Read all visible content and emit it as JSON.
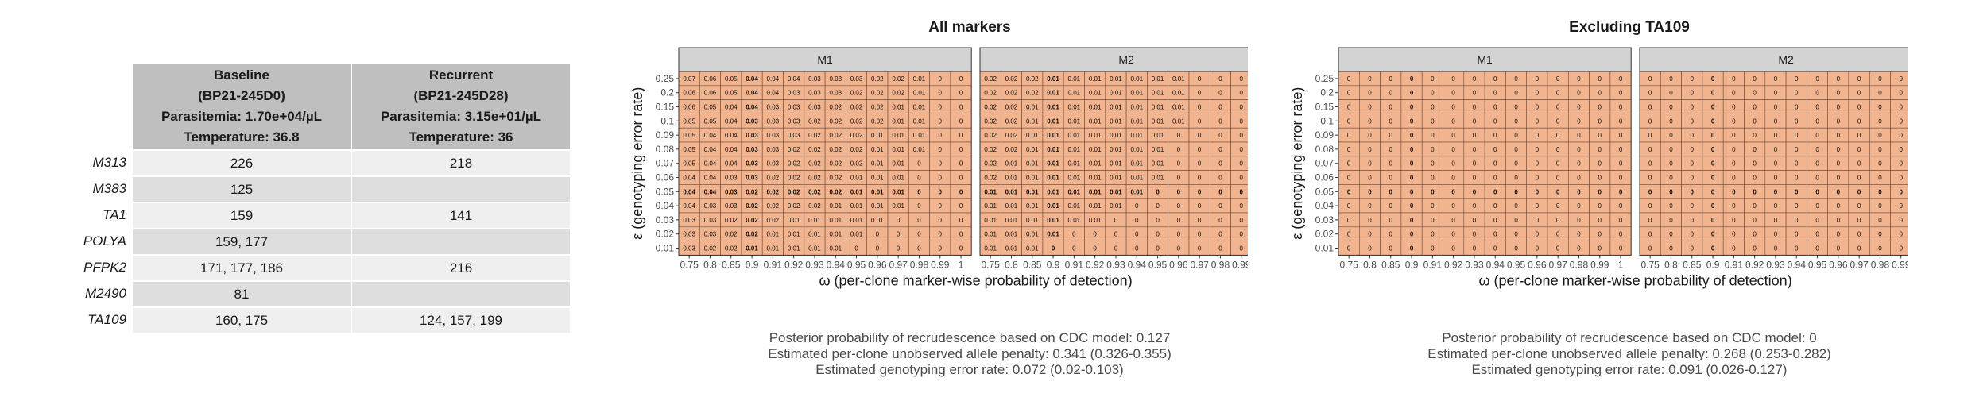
{
  "table": {
    "columns": [
      {
        "lines": [
          "Baseline",
          "(BP21-245D0)",
          "Parasitemia: 1.70e+04/µL",
          "Temperature: 36.8"
        ]
      },
      {
        "lines": [
          "Recurrent",
          "(BP21-245D28)",
          "Parasitemia: 3.15e+01/µL",
          "Temperature: 36"
        ]
      }
    ],
    "rows": [
      {
        "marker": "M313",
        "baseline": "226",
        "recurrent": "218"
      },
      {
        "marker": "M383",
        "baseline": "125",
        "recurrent": ""
      },
      {
        "marker": "TA1",
        "baseline": "159",
        "recurrent": "141"
      },
      {
        "marker": "POLYA",
        "baseline": "159, 177",
        "recurrent": ""
      },
      {
        "marker": "PFPK2",
        "baseline": "171, 177, 186",
        "recurrent": "216"
      },
      {
        "marker": "M2490",
        "baseline": "81",
        "recurrent": ""
      },
      {
        "marker": "TA109",
        "baseline": "160, 175",
        "recurrent": "124, 157, 199"
      }
    ]
  },
  "chart_data": [
    {
      "type": "heatmap",
      "title": "All markers",
      "xlabel": "ω (per-clone marker-wise probability of detection)",
      "ylabel": "ε (genotyping error rate)",
      "x": [
        "0.75",
        "0.8",
        "0.85",
        "0.9",
        "0.91",
        "0.92",
        "0.93",
        "0.94",
        "0.95",
        "0.96",
        "0.97",
        "0.98",
        "0.99",
        "1"
      ],
      "y": [
        "0.25",
        "0.2",
        "0.15",
        "0.1",
        "0.09",
        "0.08",
        "0.07",
        "0.06",
        "0.05",
        "0.04",
        "0.03",
        "0.02",
        "0.01"
      ],
      "bold_x": "0.9",
      "bold_y": "0.05",
      "facets": [
        {
          "name": "M1",
          "values": [
            [
              "0.07",
              "0.06",
              "0.05",
              "0.04",
              "0.04",
              "0.04",
              "0.03",
              "0.03",
              "0.03",
              "0.02",
              "0.02",
              "0.01",
              "0",
              "0"
            ],
            [
              "0.06",
              "0.06",
              "0.05",
              "0.04",
              "0.04",
              "0.03",
              "0.03",
              "0.03",
              "0.02",
              "0.02",
              "0.02",
              "0.01",
              "0",
              "0"
            ],
            [
              "0.06",
              "0.05",
              "0.04",
              "0.04",
              "0.03",
              "0.03",
              "0.03",
              "0.02",
              "0.02",
              "0.02",
              "0.01",
              "0.01",
              "0",
              "0"
            ],
            [
              "0.05",
              "0.05",
              "0.04",
              "0.03",
              "0.03",
              "0.03",
              "0.02",
              "0.02",
              "0.02",
              "0.02",
              "0.01",
              "0.01",
              "0",
              "0"
            ],
            [
              "0.05",
              "0.04",
              "0.04",
              "0.03",
              "0.03",
              "0.03",
              "0.02",
              "0.02",
              "0.02",
              "0.01",
              "0.01",
              "0.01",
              "0",
              "0"
            ],
            [
              "0.05",
              "0.04",
              "0.04",
              "0.03",
              "0.03",
              "0.02",
              "0.02",
              "0.02",
              "0.02",
              "0.01",
              "0.01",
              "0.01",
              "0",
              "0"
            ],
            [
              "0.05",
              "0.04",
              "0.04",
              "0.03",
              "0.03",
              "0.02",
              "0.02",
              "0.02",
              "0.02",
              "0.01",
              "0.01",
              "0",
              "0",
              "0"
            ],
            [
              "0.04",
              "0.04",
              "0.03",
              "0.03",
              "0.02",
              "0.02",
              "0.02",
              "0.02",
              "0.01",
              "0.01",
              "0.01",
              "0",
              "0",
              "0"
            ],
            [
              "0.04",
              "0.04",
              "0.03",
              "0.02",
              "0.02",
              "0.02",
              "0.02",
              "0.02",
              "0.01",
              "0.01",
              "0.01",
              "0",
              "0",
              "0"
            ],
            [
              "0.04",
              "0.03",
              "0.03",
              "0.02",
              "0.02",
              "0.02",
              "0.02",
              "0.01",
              "0.01",
              "0.01",
              "0.01",
              "0",
              "0",
              "0"
            ],
            [
              "0.03",
              "0.03",
              "0.02",
              "0.02",
              "0.02",
              "0.01",
              "0.01",
              "0.01",
              "0.01",
              "0.01",
              "0",
              "0",
              "0",
              "0"
            ],
            [
              "0.03",
              "0.03",
              "0.02",
              "0.02",
              "0.01",
              "0.01",
              "0.01",
              "0.01",
              "0.01",
              "0",
              "0",
              "0",
              "0",
              "0"
            ],
            [
              "0.03",
              "0.02",
              "0.02",
              "0.01",
              "0.01",
              "0.01",
              "0.01",
              "0.01",
              "0",
              "0",
              "0",
              "0",
              "0",
              "0"
            ]
          ]
        },
        {
          "name": "M2",
          "values": [
            [
              "0.02",
              "0.02",
              "0.02",
              "0.01",
              "0.01",
              "0.01",
              "0.01",
              "0.01",
              "0.01",
              "0.01",
              "0",
              "0",
              "0",
              "0"
            ],
            [
              "0.02",
              "0.02",
              "0.02",
              "0.01",
              "0.01",
              "0.01",
              "0.01",
              "0.01",
              "0.01",
              "0.01",
              "0",
              "0",
              "0",
              "0"
            ],
            [
              "0.02",
              "0.02",
              "0.01",
              "0.01",
              "0.01",
              "0.01",
              "0.01",
              "0.01",
              "0.01",
              "0.01",
              "0",
              "0",
              "0",
              "0"
            ],
            [
              "0.02",
              "0.02",
              "0.01",
              "0.01",
              "0.01",
              "0.01",
              "0.01",
              "0.01",
              "0.01",
              "0.01",
              "0",
              "0",
              "0",
              "0"
            ],
            [
              "0.02",
              "0.02",
              "0.01",
              "0.01",
              "0.01",
              "0.01",
              "0.01",
              "0.01",
              "0.01",
              "0",
              "0",
              "0",
              "0",
              "0"
            ],
            [
              "0.02",
              "0.02",
              "0.01",
              "0.01",
              "0.01",
              "0.01",
              "0.01",
              "0.01",
              "0.01",
              "0",
              "0",
              "0",
              "0",
              "0"
            ],
            [
              "0.02",
              "0.01",
              "0.01",
              "0.01",
              "0.01",
              "0.01",
              "0.01",
              "0.01",
              "0.01",
              "0",
              "0",
              "0",
              "0",
              "0"
            ],
            [
              "0.02",
              "0.01",
              "0.01",
              "0.01",
              "0.01",
              "0.01",
              "0.01",
              "0.01",
              "0.01",
              "0",
              "0",
              "0",
              "0",
              "0"
            ],
            [
              "0.01",
              "0.01",
              "0.01",
              "0.01",
              "0.01",
              "0.01",
              "0.01",
              "0.01",
              "0",
              "0",
              "0",
              "0",
              "0",
              "0"
            ],
            [
              "0.01",
              "0.01",
              "0.01",
              "0.01",
              "0.01",
              "0.01",
              "0.01",
              "0",
              "0",
              "0",
              "0",
              "0",
              "0",
              "0"
            ],
            [
              "0.01",
              "0.01",
              "0.01",
              "0.01",
              "0.01",
              "0.01",
              "0",
              "0",
              "0",
              "0",
              "0",
              "0",
              "0",
              "0"
            ],
            [
              "0.01",
              "0.01",
              "0.01",
              "0.01",
              "0",
              "0",
              "0",
              "0",
              "0",
              "0",
              "0",
              "0",
              "0",
              "0"
            ],
            [
              "0.01",
              "0.01",
              "0.01",
              "0",
              "0",
              "0",
              "0",
              "0",
              "0",
              "0",
              "0",
              "0",
              "0",
              "0"
            ]
          ]
        }
      ],
      "caption": [
        "Posterior probability of recrudescence based on CDC model: 0.127",
        "Estimated per-clone unobserved allele penalty: 0.341 (0.326-0.355)",
        "Estimated genotyping error rate: 0.072 (0.02-0.103)"
      ]
    },
    {
      "type": "heatmap",
      "title": "Excluding TA109",
      "xlabel": "ω (per-clone marker-wise probability of detection)",
      "ylabel": "ε (genotyping error rate)",
      "x": [
        "0.75",
        "0.8",
        "0.85",
        "0.9",
        "0.91",
        "0.92",
        "0.93",
        "0.94",
        "0.95",
        "0.96",
        "0.97",
        "0.98",
        "0.99",
        "1"
      ],
      "y": [
        "0.25",
        "0.2",
        "0.15",
        "0.1",
        "0.09",
        "0.08",
        "0.07",
        "0.06",
        "0.05",
        "0.04",
        "0.03",
        "0.02",
        "0.01"
      ],
      "bold_x": "0.9",
      "bold_y": "0.05",
      "facets": [
        {
          "name": "M1",
          "fill": "0"
        },
        {
          "name": "M2",
          "fill": "0"
        }
      ],
      "caption": [
        "Posterior probability of recrudescence based on CDC model: 0",
        "Estimated per-clone unobserved allele penalty: 0.268 (0.253-0.282)",
        "Estimated genotyping error rate: 0.091 (0.026-0.127)"
      ]
    }
  ],
  "colors": {
    "cell": "#f2b48f",
    "strip": "#d3d3d3",
    "table_header": "#bfbfbf",
    "row_light": "#efefef",
    "row_dark": "#dedede"
  }
}
